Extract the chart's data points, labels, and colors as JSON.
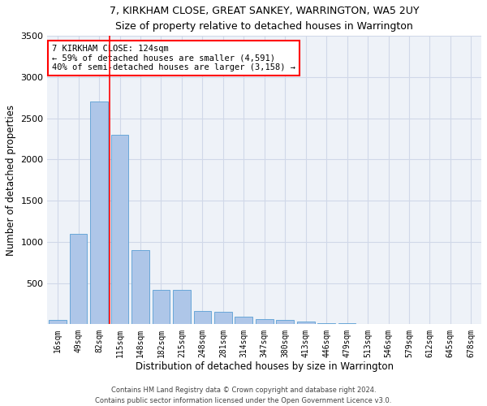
{
  "title1": "7, KIRKHAM CLOSE, GREAT SANKEY, WARRINGTON, WA5 2UY",
  "title2": "Size of property relative to detached houses in Warrington",
  "xlabel": "Distribution of detached houses by size in Warrington",
  "ylabel": "Number of detached properties",
  "categories": [
    "16sqm",
    "49sqm",
    "82sqm",
    "115sqm",
    "148sqm",
    "182sqm",
    "215sqm",
    "248sqm",
    "281sqm",
    "314sqm",
    "347sqm",
    "380sqm",
    "413sqm",
    "446sqm",
    "479sqm",
    "513sqm",
    "546sqm",
    "579sqm",
    "612sqm",
    "645sqm",
    "678sqm"
  ],
  "values": [
    50,
    1100,
    2700,
    2300,
    900,
    420,
    420,
    160,
    150,
    90,
    60,
    50,
    30,
    15,
    10,
    5,
    3,
    2,
    1,
    1,
    0
  ],
  "bar_color": "#aec6e8",
  "bar_edge_color": "#5a9fd4",
  "grid_color": "#d0d8e8",
  "background_color": "#eef2f8",
  "annotation_text": "7 KIRKHAM CLOSE: 124sqm\n← 59% of detached houses are smaller (4,591)\n40% of semi-detached houses are larger (3,158) →",
  "annotation_box_color": "white",
  "annotation_box_edge_color": "red",
  "red_line_x": 2.5,
  "ylim": [
    0,
    3500
  ],
  "yticks": [
    0,
    500,
    1000,
    1500,
    2000,
    2500,
    3000,
    3500
  ],
  "footer1": "Contains HM Land Registry data © Crown copyright and database right 2024.",
  "footer2": "Contains public sector information licensed under the Open Government Licence v3.0."
}
